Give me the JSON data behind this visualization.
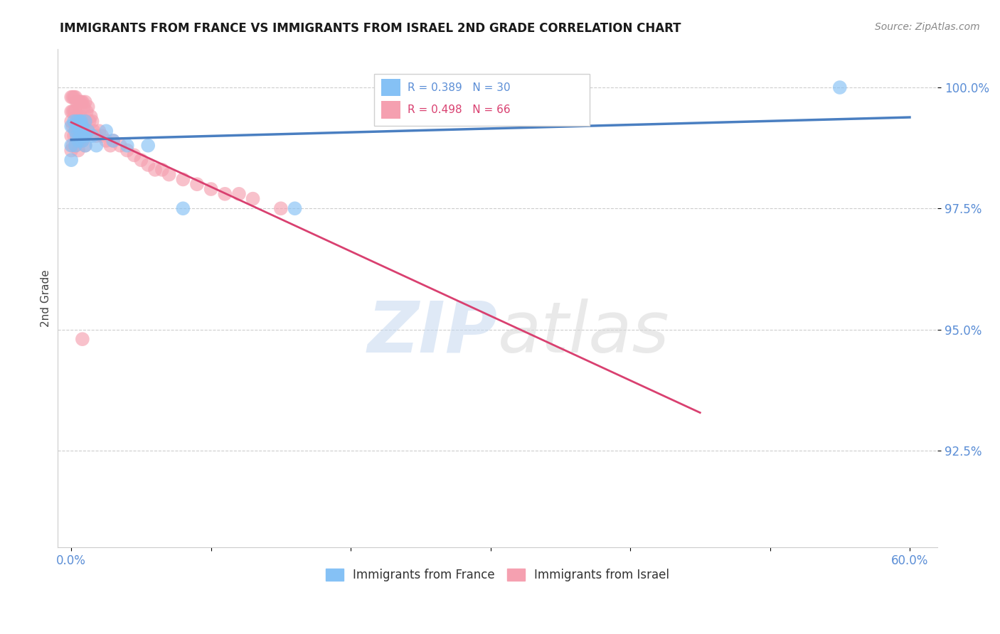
{
  "title": "IMMIGRANTS FROM FRANCE VS IMMIGRANTS FROM ISRAEL 2ND GRADE CORRELATION CHART",
  "source_text": "Source: ZipAtlas.com",
  "ylabel": "2nd Grade",
  "xlim": [
    -0.01,
    0.62
  ],
  "ylim": [
    0.905,
    1.008
  ],
  "yticks": [
    0.925,
    0.95,
    0.975,
    1.0
  ],
  "ytick_labels": [
    "92.5%",
    "95.0%",
    "97.5%",
    "100.0%"
  ],
  "xtick_vals": [
    0.0,
    0.1,
    0.2,
    0.3,
    0.4,
    0.5,
    0.6
  ],
  "xtick_labels": [
    "0.0%",
    "",
    "",
    "",
    "",
    "",
    "60.0%"
  ],
  "legend_france": "Immigrants from France",
  "legend_israel": "Immigrants from Israel",
  "R_france": 0.389,
  "N_france": 30,
  "R_israel": 0.498,
  "N_israel": 66,
  "color_france": "#85c1f5",
  "color_israel": "#f5a0b0",
  "trendline_france": "#4a7fc1",
  "trendline_israel": "#d94070",
  "watermark_zip": "ZIP",
  "watermark_atlas": "atlas",
  "france_x": [
    0.0,
    0.0,
    0.0,
    0.002,
    0.003,
    0.003,
    0.004,
    0.004,
    0.005,
    0.005,
    0.006,
    0.006,
    0.007,
    0.007,
    0.008,
    0.008,
    0.009,
    0.01,
    0.01,
    0.01,
    0.012,
    0.015,
    0.018,
    0.025,
    0.03,
    0.04,
    0.055,
    0.08,
    0.16,
    0.55
  ],
  "france_y": [
    0.992,
    0.988,
    0.985,
    0.993,
    0.991,
    0.988,
    0.993,
    0.99,
    0.992,
    0.989,
    0.993,
    0.99,
    0.993,
    0.99,
    0.992,
    0.989,
    0.99,
    0.993,
    0.99,
    0.988,
    0.991,
    0.99,
    0.988,
    0.991,
    0.989,
    0.988,
    0.988,
    0.975,
    0.975,
    1.0
  ],
  "israel_x": [
    0.0,
    0.0,
    0.0,
    0.0,
    0.0,
    0.001,
    0.001,
    0.001,
    0.001,
    0.002,
    0.002,
    0.002,
    0.003,
    0.003,
    0.003,
    0.003,
    0.004,
    0.004,
    0.004,
    0.005,
    0.005,
    0.005,
    0.005,
    0.006,
    0.006,
    0.006,
    0.007,
    0.007,
    0.007,
    0.008,
    0.008,
    0.008,
    0.009,
    0.009,
    0.01,
    0.01,
    0.01,
    0.011,
    0.012,
    0.012,
    0.013,
    0.014,
    0.015,
    0.016,
    0.018,
    0.02,
    0.022,
    0.025,
    0.028,
    0.03,
    0.035,
    0.04,
    0.045,
    0.05,
    0.055,
    0.06,
    0.065,
    0.07,
    0.08,
    0.09,
    0.1,
    0.11,
    0.12,
    0.13,
    0.15,
    0.008
  ],
  "israel_y": [
    0.998,
    0.995,
    0.993,
    0.99,
    0.987,
    0.998,
    0.995,
    0.992,
    0.988,
    0.998,
    0.995,
    0.99,
    0.998,
    0.995,
    0.992,
    0.988,
    0.997,
    0.994,
    0.99,
    0.997,
    0.994,
    0.991,
    0.987,
    0.997,
    0.993,
    0.989,
    0.997,
    0.994,
    0.99,
    0.997,
    0.993,
    0.989,
    0.996,
    0.991,
    0.997,
    0.993,
    0.988,
    0.995,
    0.996,
    0.991,
    0.993,
    0.994,
    0.993,
    0.991,
    0.99,
    0.991,
    0.99,
    0.989,
    0.988,
    0.989,
    0.988,
    0.987,
    0.986,
    0.985,
    0.984,
    0.983,
    0.983,
    0.982,
    0.981,
    0.98,
    0.979,
    0.978,
    0.978,
    0.977,
    0.975,
    0.948
  ]
}
